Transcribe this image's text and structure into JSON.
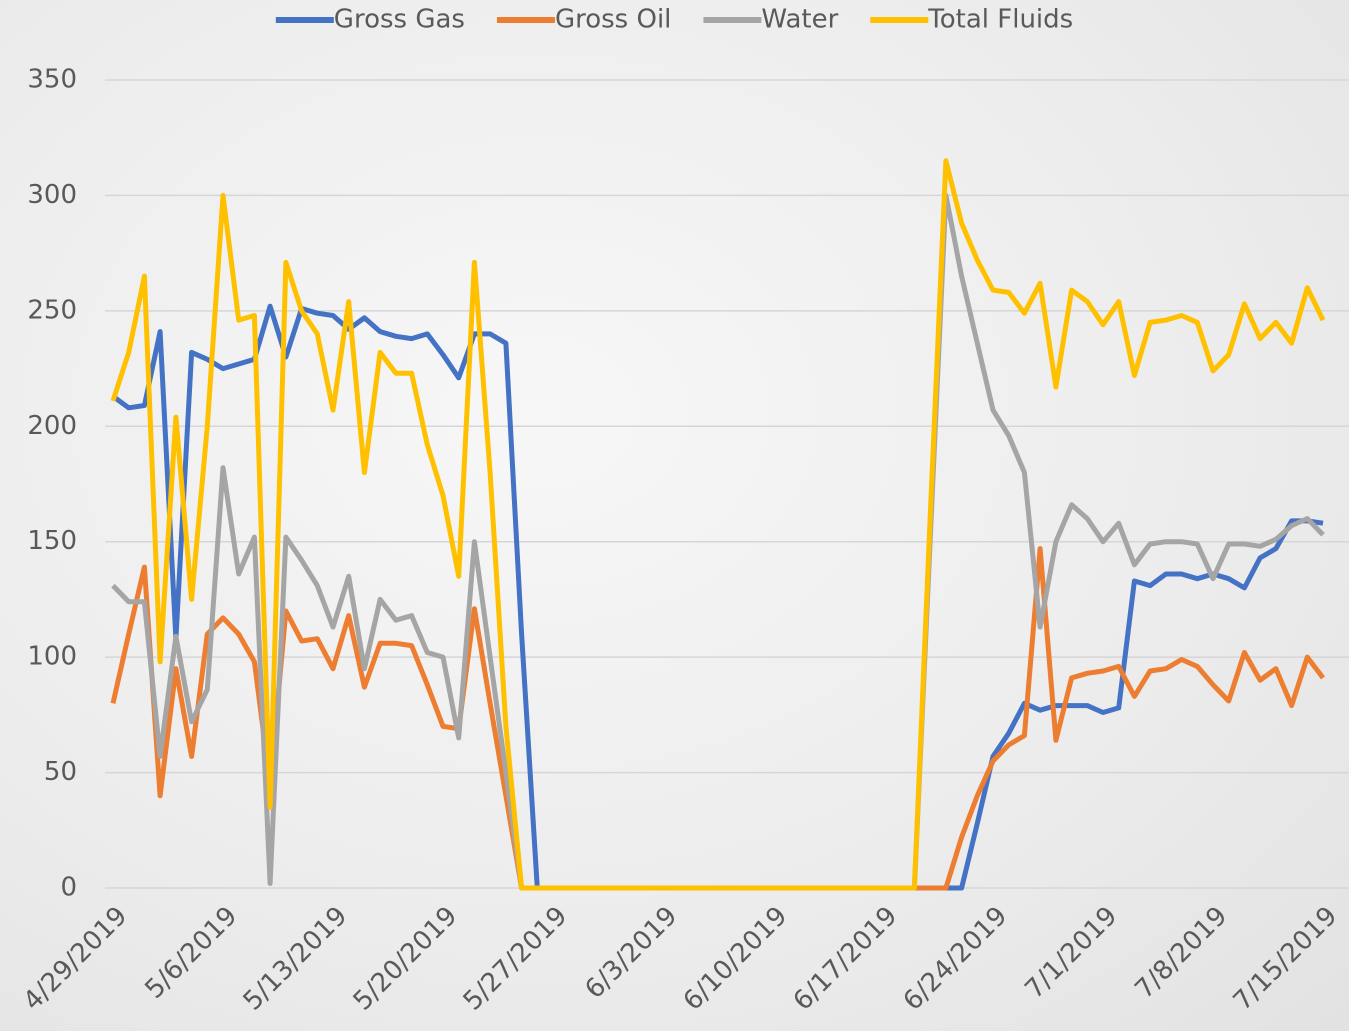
{
  "chart_data": {
    "type": "line",
    "categories": [
      "4/29/2019",
      null,
      null,
      null,
      null,
      null,
      null,
      "5/6/2019",
      null,
      null,
      null,
      null,
      null,
      null,
      "5/13/2019",
      null,
      null,
      null,
      null,
      null,
      null,
      "5/20/2019",
      null,
      null,
      null,
      null,
      null,
      null,
      "5/27/2019",
      null,
      null,
      null,
      null,
      null,
      null,
      "6/3/2019",
      null,
      null,
      null,
      null,
      null,
      null,
      "6/10/2019",
      null,
      null,
      null,
      null,
      null,
      null,
      "6/17/2019",
      null,
      null,
      null,
      null,
      null,
      null,
      "6/24/2019",
      null,
      null,
      null,
      null,
      null,
      null,
      "7/1/2019",
      null,
      null,
      null,
      null,
      null,
      null,
      "7/8/2019",
      null,
      null,
      null,
      null,
      null,
      null,
      "7/15/2019"
    ],
    "series": [
      {
        "name": "Gross Gas",
        "color": "#4472c4",
        "values": [
          213,
          208,
          209,
          241,
          108,
          232,
          229,
          225,
          227,
          229,
          252,
          230,
          251,
          249,
          248,
          242,
          247,
          241,
          239,
          238,
          240,
          231,
          221,
          240,
          240,
          236,
          110,
          0,
          0,
          0,
          0,
          0,
          0,
          0,
          0,
          0,
          0,
          0,
          0,
          0,
          0,
          0,
          0,
          0,
          0,
          0,
          0,
          0,
          0,
          0,
          0,
          0,
          0,
          0,
          0,
          28,
          57,
          67,
          80,
          77,
          79,
          79,
          79,
          76,
          78,
          133,
          131,
          136,
          136,
          134,
          136,
          134,
          130,
          143,
          147,
          159,
          159,
          158
        ]
      },
      {
        "name": "Gross Oil",
        "color": "#ed7d31",
        "values": [
          80,
          110,
          139,
          40,
          95,
          57,
          110,
          117,
          110,
          98,
          45,
          120,
          107,
          108,
          95,
          118,
          87,
          106,
          106,
          105,
          88,
          70,
          69,
          121,
          80,
          40,
          0,
          0,
          0,
          0,
          0,
          0,
          0,
          0,
          0,
          0,
          0,
          0,
          0,
          0,
          0,
          0,
          0,
          0,
          0,
          0,
          0,
          0,
          0,
          0,
          0,
          0,
          0,
          0,
          22,
          40,
          55,
          62,
          66,
          147,
          64,
          91,
          93,
          94,
          96,
          83,
          94,
          95,
          99,
          96,
          88,
          81,
          102,
          90,
          95,
          79,
          100,
          91
        ]
      },
      {
        "name": "Water",
        "color": "#a5a5a5",
        "values": [
          131,
          124,
          124,
          57,
          109,
          72,
          86,
          182,
          136,
          152,
          2,
          152,
          142,
          131,
          113,
          135,
          95,
          125,
          116,
          118,
          102,
          100,
          65,
          150,
          100,
          50,
          0,
          0,
          0,
          0,
          0,
          0,
          0,
          0,
          0,
          0,
          0,
          0,
          0,
          0,
          0,
          0,
          0,
          0,
          0,
          0,
          0,
          0,
          0,
          0,
          0,
          0,
          150,
          300,
          265,
          236,
          207,
          196,
          180,
          113,
          150,
          166,
          160,
          150,
          158,
          140,
          149,
          150,
          150,
          149,
          134,
          149,
          149,
          148,
          151,
          157,
          160,
          153
        ]
      },
      {
        "name": "Total Fluids",
        "color": "#ffc000",
        "values": [
          211,
          232,
          265,
          98,
          204,
          125,
          200,
          300,
          246,
          248,
          35,
          271,
          250,
          240,
          207,
          254,
          180,
          232,
          223,
          223,
          192,
          170,
          135,
          271,
          180,
          70,
          0,
          0,
          0,
          0,
          0,
          0,
          0,
          0,
          0,
          0,
          0,
          0,
          0,
          0,
          0,
          0,
          0,
          0,
          0,
          0,
          0,
          0,
          0,
          0,
          0,
          0,
          160,
          315,
          288,
          272,
          259,
          258,
          249,
          262,
          217,
          259,
          254,
          244,
          254,
          222,
          245,
          246,
          248,
          245,
          224,
          231,
          253,
          238,
          245,
          236,
          260,
          246
        ]
      }
    ],
    "ylim": [
      0,
      350
    ],
    "yticks": [
      0,
      50,
      100,
      150,
      200,
      250,
      300,
      350
    ],
    "grid": true,
    "legend": "top"
  }
}
